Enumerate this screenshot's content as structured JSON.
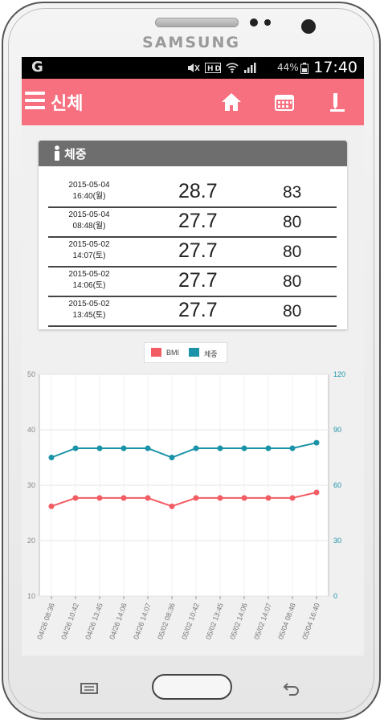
{
  "device": {
    "brand": "SAMSUNG"
  },
  "status_bar": {
    "carrier_icon": "G",
    "battery": "44%",
    "time": "17:40"
  },
  "app_bar": {
    "title": "신체",
    "icons": [
      "menu-icon",
      "home-icon",
      "calendar-icon",
      "pen-icon"
    ]
  },
  "weight_card": {
    "title": "체중",
    "rows": [
      {
        "date": "2015-05-04",
        "time": "16:40(월)",
        "bmi": "28.7",
        "weight": "83"
      },
      {
        "date": "2015-05-04",
        "time": "08:48(월)",
        "bmi": "27.7",
        "weight": "80"
      },
      {
        "date": "2015-05-02",
        "time": "14:07(토)",
        "bmi": "27.7",
        "weight": "80"
      },
      {
        "date": "2015-05-02",
        "time": "14:06(토)",
        "bmi": "27.7",
        "weight": "80"
      },
      {
        "date": "2015-05-02",
        "time": "13:45(토)",
        "bmi": "27.7",
        "weight": "80"
      }
    ]
  },
  "chart_data": {
    "type": "line",
    "categories": [
      "04/26 08:36",
      "04/26 10:42",
      "04/26 13:45",
      "04/26 14:06",
      "04/26 14:07",
      "05/02 08:36",
      "05/02 10:42",
      "05/02 13:45",
      "05/02 14:06",
      "05/02 14:07",
      "05/04 08:48",
      "05/04 16:40"
    ],
    "series": [
      {
        "name": "BMI",
        "axis": "left",
        "color": "#f25d64",
        "values": [
          26.2,
          27.7,
          27.7,
          27.7,
          27.7,
          26.2,
          27.7,
          27.7,
          27.7,
          27.7,
          27.7,
          28.7
        ]
      },
      {
        "name": "체중",
        "axis": "right",
        "color": "#1a93a8",
        "values": [
          75,
          80,
          80,
          80,
          80,
          75,
          80,
          80,
          80,
          80,
          80,
          83
        ]
      }
    ],
    "y_left": {
      "ticks": [
        "10",
        "20",
        "30",
        "40",
        "50"
      ],
      "min": 10,
      "max": 50,
      "color": "#888888"
    },
    "y_right": {
      "ticks": [
        "0",
        "30",
        "60",
        "90",
        "120"
      ],
      "min": 0,
      "max": 120,
      "color": "#1a93a8"
    },
    "grid": true,
    "legend": "top-center"
  },
  "colors": {
    "accent": "#f7707f",
    "card_header": "#6e6e6e",
    "bmi": "#f25d64",
    "weight": "#1a93a8"
  }
}
